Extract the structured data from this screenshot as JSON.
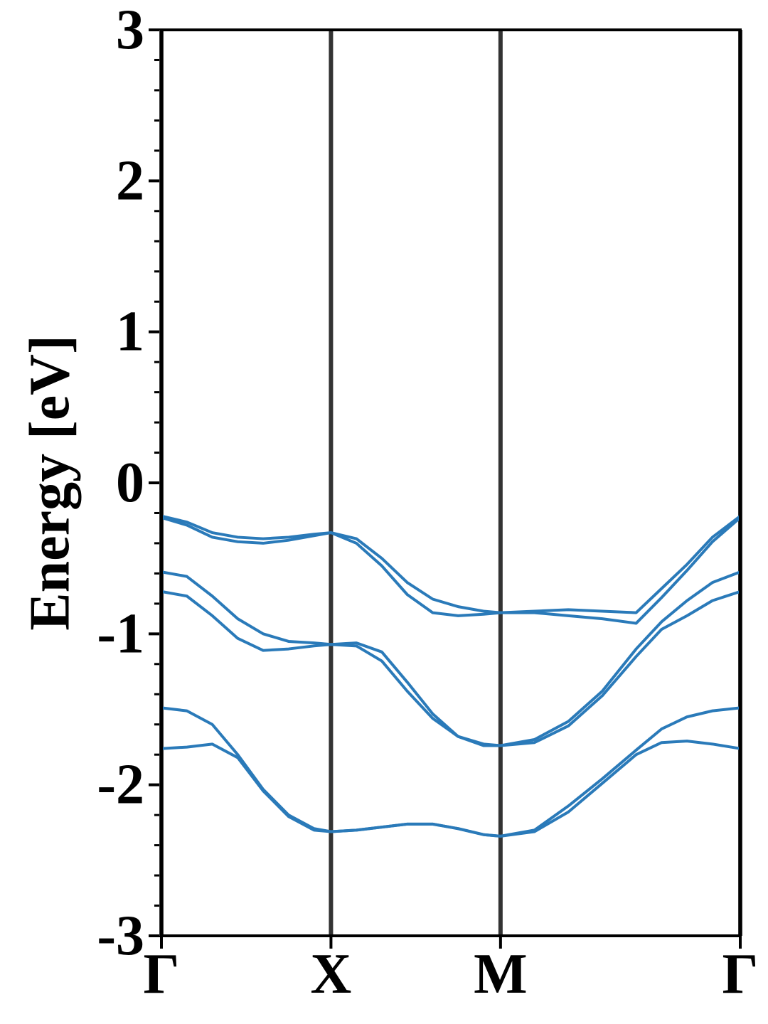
{
  "chart_data": {
    "type": "line",
    "ylabel": "Energy [eV]",
    "x": [
      0,
      0.15,
      0.3,
      0.45,
      0.6,
      0.75,
      0.9,
      1.0,
      1.15,
      1.3,
      1.45,
      1.6,
      1.75,
      1.9,
      2.0,
      2.2,
      2.4,
      2.6,
      2.8,
      2.95,
      3.1,
      3.25,
      3.414
    ],
    "series": [
      {
        "color": "#2a7ab9",
        "values": [
          -0.22,
          -0.26,
          -0.33,
          -0.36,
          -0.37,
          -0.36,
          -0.34,
          -0.33,
          -0.37,
          -0.5,
          -0.66,
          -0.77,
          -0.82,
          -0.85,
          -0.86,
          -0.85,
          -0.84,
          -0.85,
          -0.86,
          -0.7,
          -0.54,
          -0.36,
          -0.22
        ]
      },
      {
        "color": "#2a7ab9",
        "values": [
          -0.23,
          -0.28,
          -0.36,
          -0.39,
          -0.4,
          -0.38,
          -0.35,
          -0.33,
          -0.4,
          -0.55,
          -0.74,
          -0.86,
          -0.88,
          -0.87,
          -0.86,
          -0.86,
          -0.88,
          -0.9,
          -0.93,
          -0.76,
          -0.58,
          -0.39,
          -0.23
        ]
      },
      {
        "color": "#2a7ab9",
        "values": [
          -0.59,
          -0.62,
          -0.75,
          -0.9,
          -1.0,
          -1.05,
          -1.06,
          -1.07,
          -1.08,
          -1.18,
          -1.38,
          -1.56,
          -1.68,
          -1.73,
          -1.74,
          -1.7,
          -1.58,
          -1.38,
          -1.1,
          -0.92,
          -0.78,
          -0.66,
          -0.59
        ]
      },
      {
        "color": "#2a7ab9",
        "values": [
          -0.72,
          -0.75,
          -0.88,
          -1.03,
          -1.11,
          -1.1,
          -1.08,
          -1.07,
          -1.06,
          -1.12,
          -1.32,
          -1.53,
          -1.68,
          -1.74,
          -1.74,
          -1.72,
          -1.61,
          -1.41,
          -1.15,
          -0.97,
          -0.88,
          -0.78,
          -0.72
        ]
      },
      {
        "color": "#2a7ab9",
        "values": [
          -1.49,
          -1.51,
          -1.6,
          -1.8,
          -2.03,
          -2.2,
          -2.29,
          -2.31,
          -2.3,
          -2.28,
          -2.26,
          -2.26,
          -2.29,
          -2.33,
          -2.34,
          -2.3,
          -2.14,
          -1.96,
          -1.77,
          -1.63,
          -1.55,
          -1.51,
          -1.49
        ]
      },
      {
        "color": "#2a7ab9",
        "values": [
          -1.76,
          -1.75,
          -1.73,
          -1.82,
          -2.04,
          -2.21,
          -2.3,
          -2.31,
          -2.3,
          -2.28,
          -2.26,
          -2.26,
          -2.29,
          -2.33,
          -2.34,
          -2.31,
          -2.18,
          -1.99,
          -1.8,
          -1.72,
          -1.71,
          -1.73,
          -1.76
        ]
      }
    ],
    "xlim": [
      0,
      3.414
    ],
    "xticks": [
      {
        "value": 0,
        "label": "Γ"
      },
      {
        "value": 1,
        "label": "X"
      },
      {
        "value": 2,
        "label": "M"
      },
      {
        "value": 3.414,
        "label": "Γ"
      }
    ],
    "ylim": [
      -3,
      3
    ],
    "yticks": [
      -3,
      -2,
      -1,
      0,
      1,
      2,
      3
    ],
    "yminorticks": [
      -2.8,
      -2.6,
      -2.4,
      -2.2,
      -1.8,
      -1.6,
      -1.4,
      -1.2,
      -0.8,
      -0.6,
      -0.4,
      -0.2,
      0.2,
      0.4,
      0.6,
      0.8,
      1.2,
      1.4,
      1.6,
      1.8,
      2.2,
      2.4,
      2.6,
      2.8
    ],
    "vline_color": "#333333"
  }
}
